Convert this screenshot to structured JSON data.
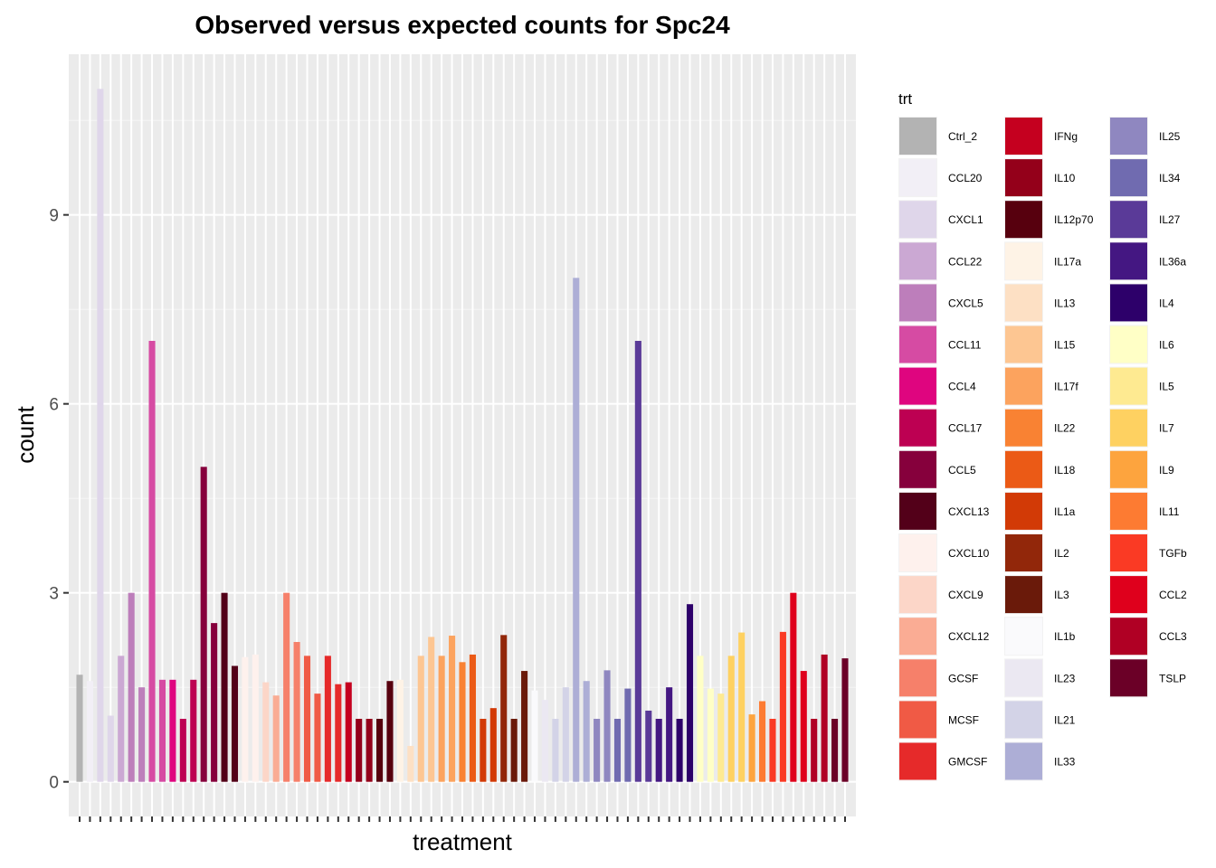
{
  "chart_data": {
    "type": "bar",
    "title": "Observed versus expected counts for Spc24",
    "xlabel": "treatment",
    "ylabel": "count",
    "ylim": [
      -0.55,
      11.55
    ],
    "yticks": [
      0,
      3,
      6,
      9
    ],
    "grid": true,
    "legend": {
      "title": "trt",
      "placement": "right",
      "columns": 3,
      "entries": [
        {
          "name": "Ctrl_2",
          "color": "#b3b3b3"
        },
        {
          "name": "CCL20",
          "color": "#f2eff6"
        },
        {
          "name": "CXCL1",
          "color": "#dfd6ea"
        },
        {
          "name": "CCL22",
          "color": "#cba8d3"
        },
        {
          "name": "CXCL5",
          "color": "#bd7ebb"
        },
        {
          "name": "CCL11",
          "color": "#d64ba3"
        },
        {
          "name": "CCL4",
          "color": "#df057f"
        },
        {
          "name": "CCL17",
          "color": "#bd0052"
        },
        {
          "name": "CCL5",
          "color": "#86003c"
        },
        {
          "name": "CXCL13",
          "color": "#530019"
        },
        {
          "name": "CXCL10",
          "color": "#fef1ed"
        },
        {
          "name": "CXCL9",
          "color": "#fcd6c8"
        },
        {
          "name": "CXCL12",
          "color": "#faac94"
        },
        {
          "name": "GCSF",
          "color": "#f6806a"
        },
        {
          "name": "MCSF",
          "color": "#f05a45"
        },
        {
          "name": "GMCSF",
          "color": "#e62a2a"
        },
        {
          "name": "IFNg",
          "color": "#c5001f"
        },
        {
          "name": "IL10",
          "color": "#94001a"
        },
        {
          "name": "IL12p70",
          "color": "#57000e"
        },
        {
          "name": "IL17a",
          "color": "#fef3e6"
        },
        {
          "name": "IL13",
          "color": "#fde0c4"
        },
        {
          "name": "IL15",
          "color": "#fdc692"
        },
        {
          "name": "IL17f",
          "color": "#fca35e"
        },
        {
          "name": "IL22",
          "color": "#f98233"
        },
        {
          "name": "IL18",
          "color": "#eb5a16"
        },
        {
          "name": "IL1a",
          "color": "#d23a06"
        },
        {
          "name": "IL2",
          "color": "#92270a"
        },
        {
          "name": "IL3",
          "color": "#6a1a0a"
        },
        {
          "name": "IL1b",
          "color": "#fafafc"
        },
        {
          "name": "IL23",
          "color": "#ebe8f2"
        },
        {
          "name": "IL21",
          "color": "#d3d3e7"
        },
        {
          "name": "IL33",
          "color": "#adaed6"
        },
        {
          "name": "IL25",
          "color": "#8f87c0"
        },
        {
          "name": "IL34",
          "color": "#706bb0"
        },
        {
          "name": "IL27",
          "color": "#5a3a98"
        },
        {
          "name": "IL36a",
          "color": "#441782"
        },
        {
          "name": "IL4",
          "color": "#2d006a"
        },
        {
          "name": "IL6",
          "color": "#ffffc6"
        },
        {
          "name": "IL5",
          "color": "#feea91"
        },
        {
          "name": "IL7",
          "color": "#fed161"
        },
        {
          "name": "IL9",
          "color": "#fda43e"
        },
        {
          "name": "IL11",
          "color": "#fd7b32"
        },
        {
          "name": "TGFb",
          "color": "#fa3a24"
        },
        {
          "name": "CCL2",
          "color": "#df001c"
        },
        {
          "name": "CCL3",
          "color": "#b00024"
        },
        {
          "name": "TSLP",
          "color": "#6b0027"
        }
      ]
    },
    "bars": [
      {
        "trt": "Ctrl_2",
        "values": [
          1.7
        ]
      },
      {
        "trt": "CCL20",
        "values": [
          1.6
        ]
      },
      {
        "trt": "CXCL1",
        "values": [
          11.0,
          1.05
        ]
      },
      {
        "trt": "CCL22",
        "values": [
          2.0
        ]
      },
      {
        "trt": "CXCL5",
        "values": [
          3.0,
          1.5
        ]
      },
      {
        "trt": "CCL11",
        "values": [
          7.0,
          1.62
        ]
      },
      {
        "trt": "CCL4",
        "values": [
          1.62
        ]
      },
      {
        "trt": "CCL17",
        "values": [
          1.0,
          1.62
        ]
      },
      {
        "trt": "CCL5",
        "values": [
          5.0,
          2.52
        ]
      },
      {
        "trt": "CXCL13",
        "values": [
          3.0,
          1.84
        ]
      },
      {
        "trt": "CXCL10",
        "values": [
          1.98,
          2.02
        ]
      },
      {
        "trt": "CXCL9",
        "values": [
          1.58
        ]
      },
      {
        "trt": "CXCL12",
        "values": [
          1.37
        ]
      },
      {
        "trt": "GCSF",
        "values": [
          3.0,
          2.22
        ]
      },
      {
        "trt": "MCSF",
        "values": [
          2.0,
          1.4
        ]
      },
      {
        "trt": "GMCSF",
        "values": [
          2.0,
          1.55
        ]
      },
      {
        "trt": "IFNg",
        "values": [
          1.58
        ]
      },
      {
        "trt": "IL10",
        "values": [
          1.0,
          1.0
        ]
      },
      {
        "trt": "IL12p70",
        "values": [
          1.0,
          1.6
        ]
      },
      {
        "trt": "IL17a",
        "values": [
          1.62
        ]
      },
      {
        "trt": "IL13",
        "values": [
          0.57
        ]
      },
      {
        "trt": "IL15",
        "values": [
          2.0,
          2.3
        ]
      },
      {
        "trt": "IL17f",
        "values": [
          2.0,
          2.32
        ]
      },
      {
        "trt": "IL22",
        "values": [
          1.9
        ]
      },
      {
        "trt": "IL18",
        "values": [
          2.02
        ]
      },
      {
        "trt": "IL1a",
        "values": [
          1.0,
          1.17
        ]
      },
      {
        "trt": "IL2",
        "values": [
          2.33
        ]
      },
      {
        "trt": "IL3",
        "values": [
          1.0,
          1.76
        ]
      },
      {
        "trt": "IL1b",
        "values": [
          1.45
        ]
      },
      {
        "trt": "IL23",
        "values": [
          1.3
        ]
      },
      {
        "trt": "IL21",
        "values": [
          1.0,
          1.5
        ]
      },
      {
        "trt": "IL33",
        "values": [
          8.0,
          1.6
        ]
      },
      {
        "trt": "IL25",
        "values": [
          1.0,
          1.77
        ]
      },
      {
        "trt": "IL34",
        "values": [
          1.0,
          1.48
        ]
      },
      {
        "trt": "IL27",
        "values": [
          7.0,
          1.13
        ]
      },
      {
        "trt": "IL36a",
        "values": [
          1.0,
          1.5
        ]
      },
      {
        "trt": "IL4",
        "values": [
          1.0,
          2.82
        ]
      },
      {
        "trt": "IL6",
        "values": [
          2.0,
          1.48
        ]
      },
      {
        "trt": "IL5",
        "values": [
          1.4
        ]
      },
      {
        "trt": "IL7",
        "values": [
          2.0,
          2.37
        ]
      },
      {
        "trt": "IL9",
        "values": [
          1.07
        ]
      },
      {
        "trt": "IL11",
        "values": [
          1.28
        ]
      },
      {
        "trt": "TGFb",
        "values": [
          1.0,
          2.38
        ]
      },
      {
        "trt": "CCL2",
        "values": [
          3.0,
          1.76
        ]
      },
      {
        "trt": "CCL3",
        "values": [
          1.0,
          2.02
        ]
      },
      {
        "trt": "TSLP",
        "values": [
          1.0,
          1.96
        ]
      }
    ]
  }
}
